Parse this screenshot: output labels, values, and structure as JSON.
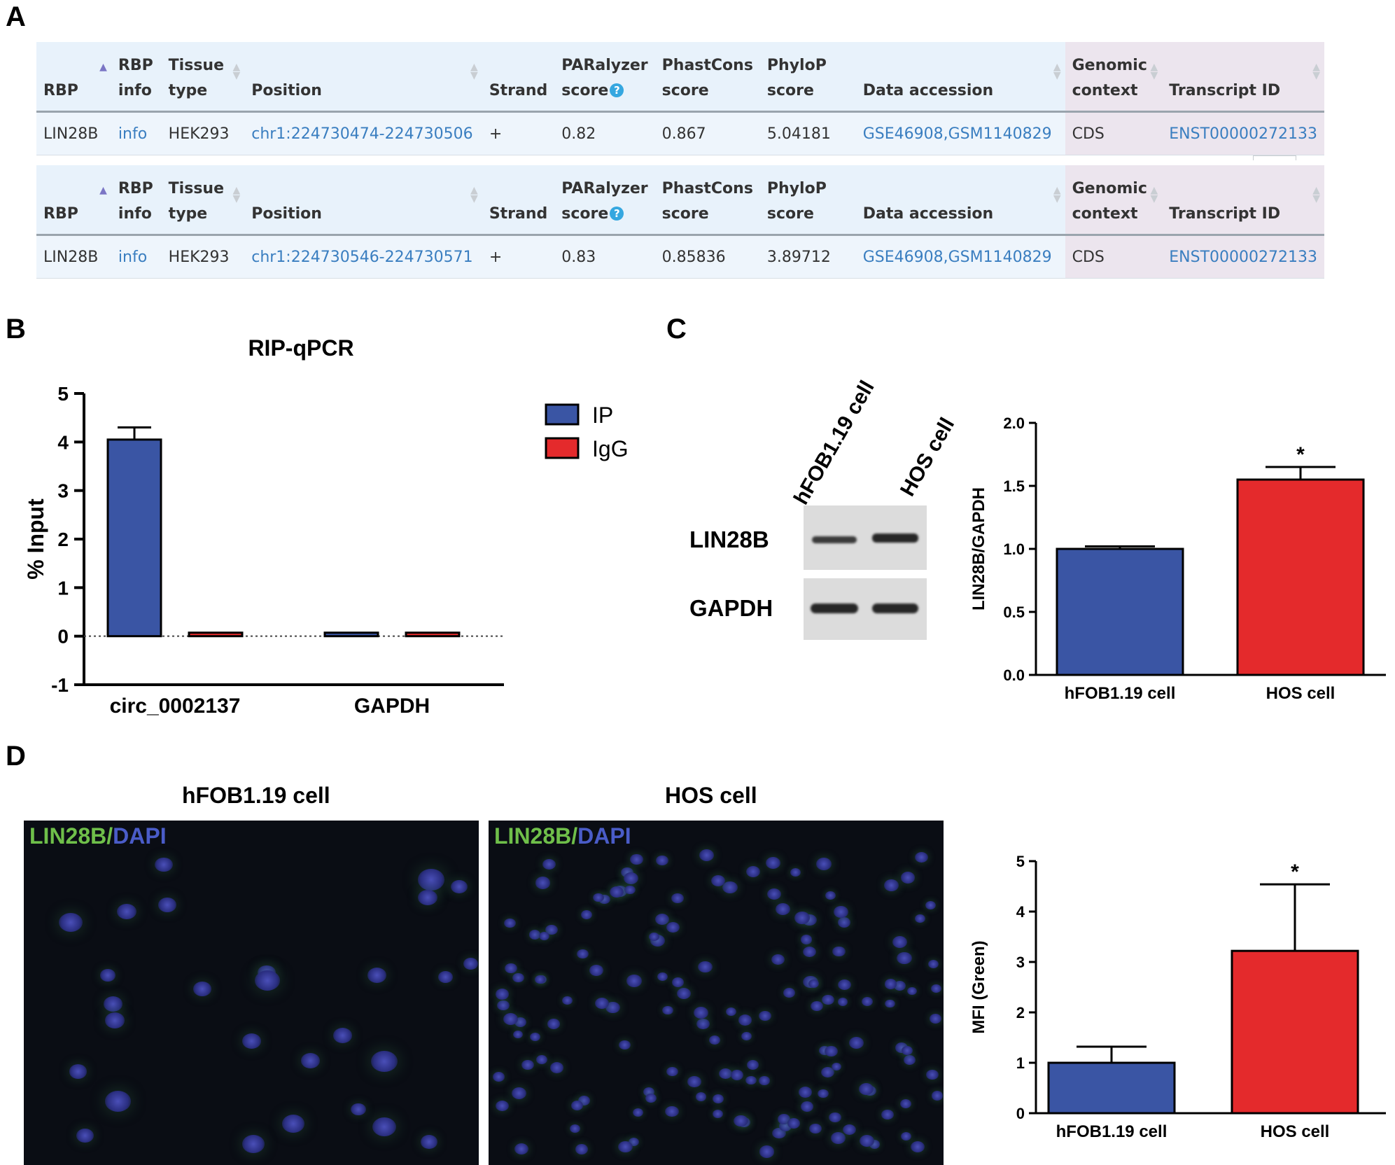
{
  "panels": {
    "a": "A",
    "b": "B",
    "c": "C",
    "d": "D"
  },
  "table": {
    "headers": {
      "rbp": "RBP",
      "rbp_info": [
        "RBP",
        "info"
      ],
      "tissue_type": [
        "Tissue",
        "type"
      ],
      "position": "Position",
      "strand": "Strand",
      "paralyzer": [
        "PARalyzer",
        "score"
      ],
      "phastcons": [
        "PhastCons",
        "score"
      ],
      "phylop": [
        "PhyloP",
        "score"
      ],
      "data_accession": "Data accession",
      "genomic_context": [
        "Genomic",
        "context"
      ],
      "transcript_id": "Transcript ID"
    },
    "rows": [
      {
        "rbp": "LIN28B",
        "info": "info",
        "tissue": "HEK293",
        "position": "chr1:224730474-224730506",
        "strand": "+",
        "paralyzer": "0.82",
        "phastcons": "0.867",
        "phylop": "5.04181",
        "accession": "GSE46908,GSM1140829",
        "context": "CDS",
        "transcript": "ENST00000272133"
      },
      {
        "rbp": "LIN28B",
        "info": "info",
        "tissue": "HEK293",
        "position": "chr1:224730546-224730571",
        "strand": "+",
        "paralyzer": "0.83",
        "phastcons": "0.85836",
        "phylop": "3.89712",
        "accession": "GSE46908,GSM1140829",
        "context": "CDS",
        "transcript": "ENST00000272133"
      }
    ]
  },
  "colors": {
    "blue": "#3a55a4",
    "red": "#e42a2c",
    "link": "#3a7ec0",
    "header_bg": "#e8f2fb",
    "context_bg": "#ece5ee"
  },
  "chart_data": [
    {
      "id": "B",
      "type": "bar",
      "title": "RIP-qPCR",
      "ylabel": "% Input",
      "categories": [
        "circ_0002137",
        "GAPDH"
      ],
      "series": [
        {
          "name": "IP",
          "values": [
            4.05,
            0.0
          ],
          "errors": [
            0.25,
            0
          ]
        },
        {
          "name": "IgG",
          "values": [
            0.0,
            0.0
          ],
          "errors": [
            0,
            0
          ]
        }
      ],
      "ylim": [
        -1,
        5
      ],
      "yticks": [
        "-1",
        "0",
        "1",
        "2",
        "3",
        "4",
        "5"
      ],
      "legend": "top-right"
    },
    {
      "id": "C",
      "type": "bar",
      "ylabel": "LIN28B/GAPDH",
      "categories": [
        "hFOB1.19 cell",
        "HOS cell"
      ],
      "values": [
        1.0,
        1.55
      ],
      "errors": [
        0.02,
        0.1
      ],
      "significance": [
        "",
        "*"
      ],
      "ylim": [
        0,
        2.0
      ],
      "yticks": [
        "0.0",
        "0.5",
        "1.0",
        "1.5",
        "2.0"
      ]
    },
    {
      "id": "D",
      "type": "bar",
      "ylabel": "MFI (Green)",
      "categories": [
        "hFOB1.19 cell",
        "HOS cell"
      ],
      "values": [
        1.0,
        3.22
      ],
      "errors": [
        0.32,
        1.32
      ],
      "significance": [
        "",
        "*"
      ],
      "ylim": [
        0,
        5
      ],
      "yticks": [
        "0",
        "1",
        "2",
        "3",
        "4",
        "5"
      ]
    }
  ],
  "blot": {
    "lanes": [
      "hFOB1.19 cell",
      "HOS cell"
    ],
    "bands": [
      "LIN28B",
      "GAPDH"
    ]
  },
  "micro": {
    "titles": [
      "hFOB1.19 cell",
      "HOS cell"
    ],
    "stain_green": "LIN28B/",
    "stain_blue": "DAPI"
  }
}
